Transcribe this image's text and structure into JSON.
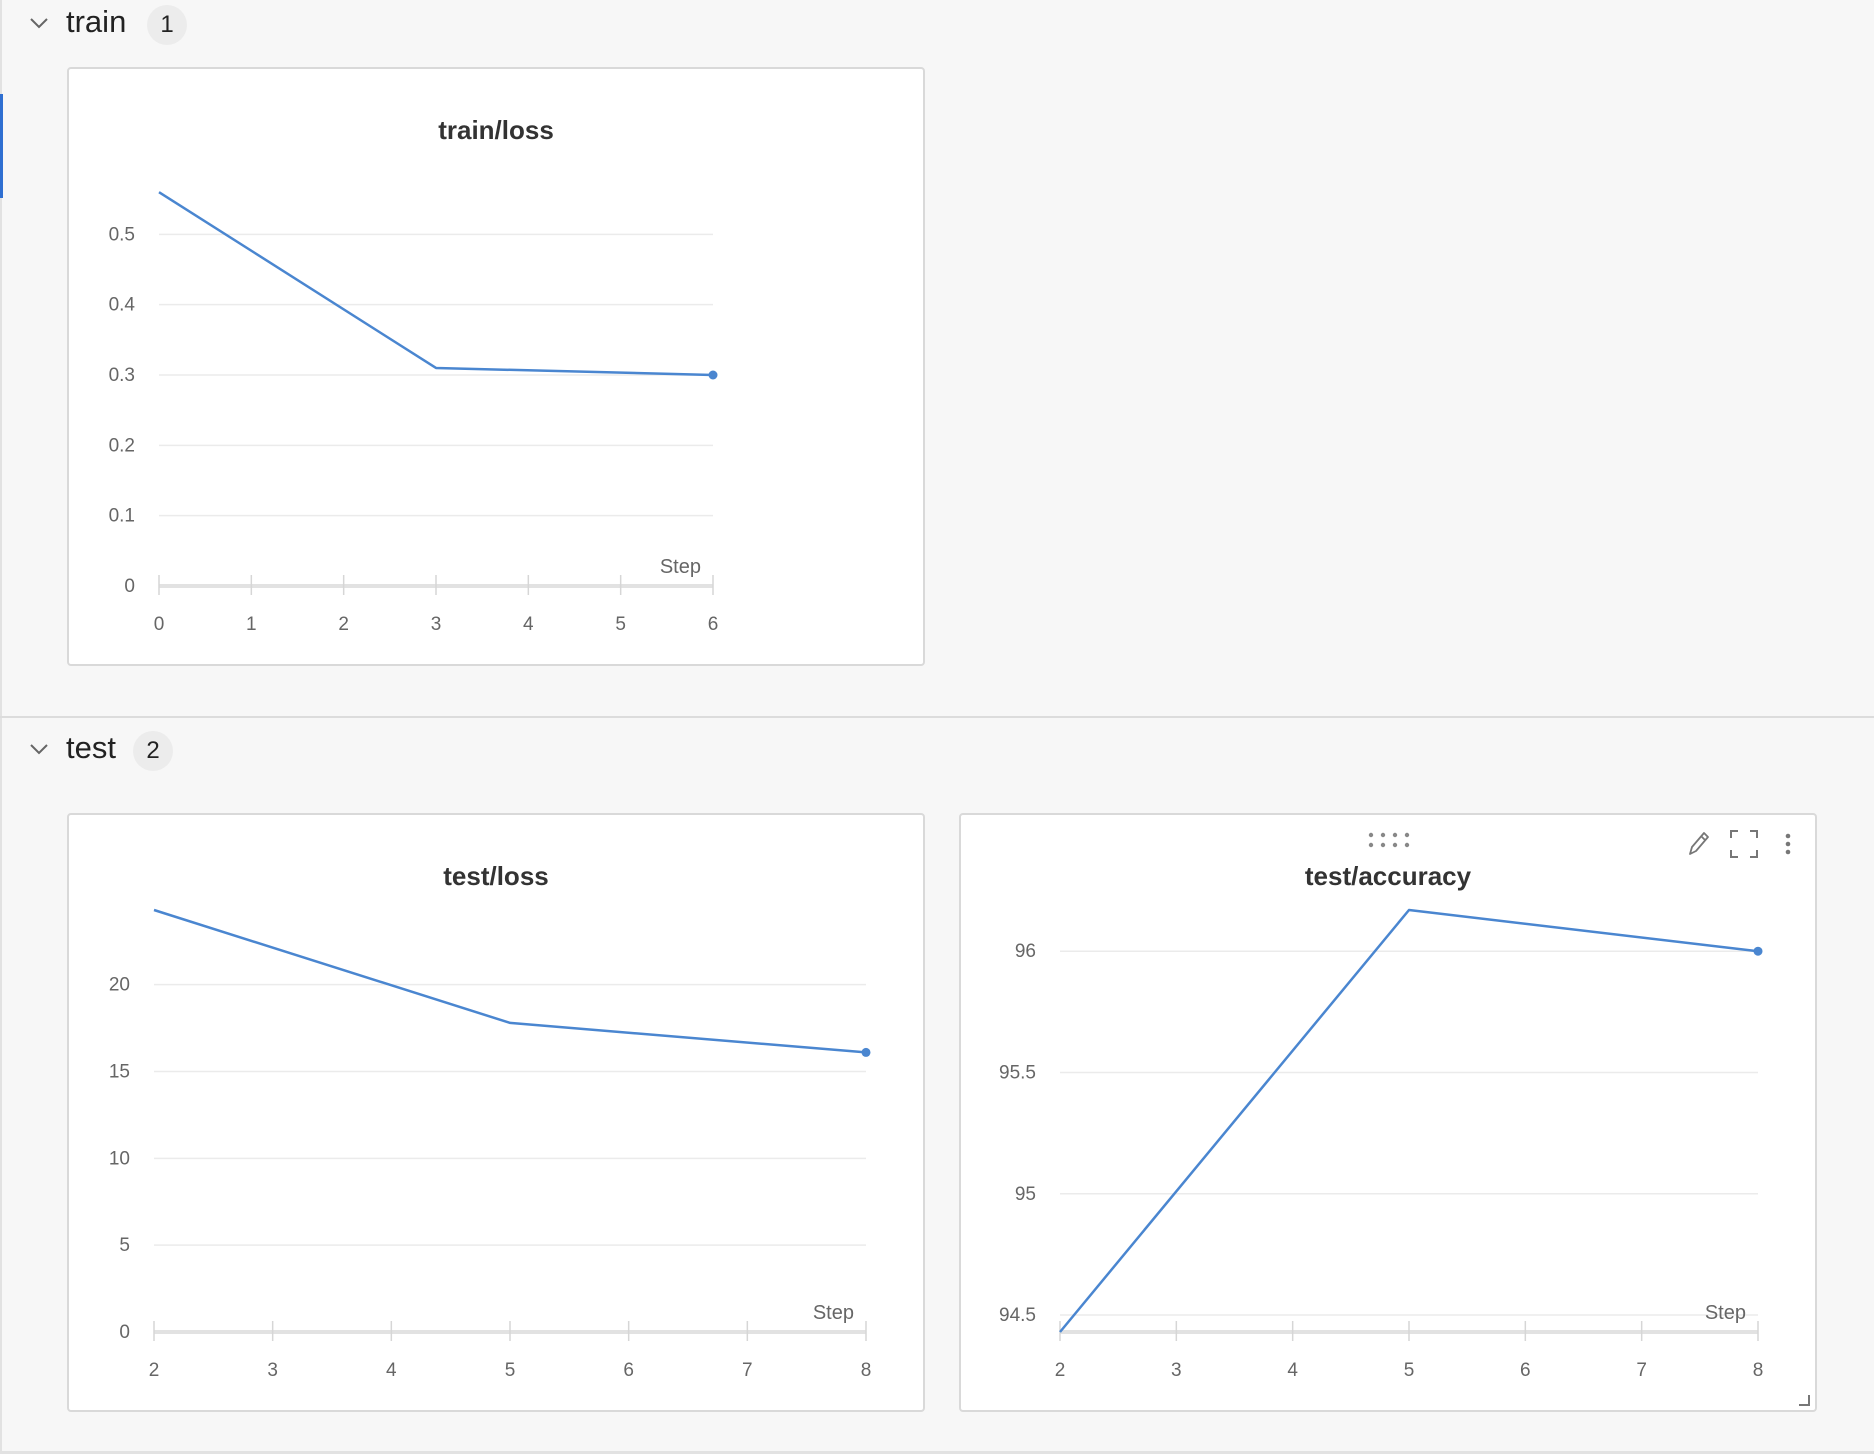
{
  "sections": [
    {
      "title": "train",
      "count": "1",
      "panels": [
        {
          "title": "train/loss",
          "chart_data": {
            "type": "line",
            "title": "train/loss",
            "xlabel": "Step",
            "ylabel": "",
            "x": [
              0,
              3,
              6
            ],
            "series": [
              {
                "values": [
                  0.56,
                  0.31,
                  0.3
                ]
              }
            ],
            "xlim": [
              0,
              6
            ],
            "ylim": [
              0,
              0.6
            ],
            "xticks": [
              0,
              1,
              2,
              3,
              4,
              5,
              6
            ],
            "yticks": [
              0,
              0.1,
              0.2,
              0.3,
              0.4,
              0.5
            ],
            "ytick_labels": [
              "0",
              "0.1",
              "0.2",
              "0.3",
              "0.4",
              "0.5"
            ],
            "grid": true,
            "color": "#4a86d0"
          }
        }
      ]
    },
    {
      "title": "test",
      "count": "2",
      "panels": [
        {
          "title": "test/loss",
          "chart_data": {
            "type": "line",
            "title": "test/loss",
            "xlabel": "Step",
            "ylabel": "",
            "x": [
              2,
              5,
              8
            ],
            "series": [
              {
                "values": [
                  24.3,
                  17.8,
                  16.1
                ]
              }
            ],
            "xlim": [
              2,
              8
            ],
            "ylim": [
              0,
              24.3
            ],
            "xticks": [
              2,
              3,
              4,
              5,
              6,
              7,
              8
            ],
            "yticks": [
              0,
              5,
              10,
              15,
              20
            ],
            "ytick_labels": [
              "0",
              "5",
              "10",
              "15",
              "20"
            ],
            "grid": true,
            "color": "#4a86d0"
          }
        },
        {
          "title": "test/accuracy",
          "chart_data": {
            "type": "line",
            "title": "test/accuracy",
            "xlabel": "Step",
            "ylabel": "",
            "x": [
              2,
              5,
              8
            ],
            "series": [
              {
                "values": [
                  94.43,
                  96.17,
                  96.0
                ]
              }
            ],
            "xlim": [
              2,
              8
            ],
            "ylim": [
              94.43,
              96.17
            ],
            "xticks": [
              2,
              3,
              4,
              5,
              6,
              7,
              8
            ],
            "yticks": [
              94.5,
              95,
              95.5,
              96
            ],
            "ytick_labels": [
              "94.5",
              "95",
              "95.5",
              "96"
            ],
            "grid": true,
            "color": "#4a86d0"
          },
          "toolbar": [
            "drag-handle-icon",
            "pencil-icon",
            "fullscreen-icon",
            "more-vertical-icon",
            "resize-corner-icon"
          ]
        }
      ]
    }
  ]
}
